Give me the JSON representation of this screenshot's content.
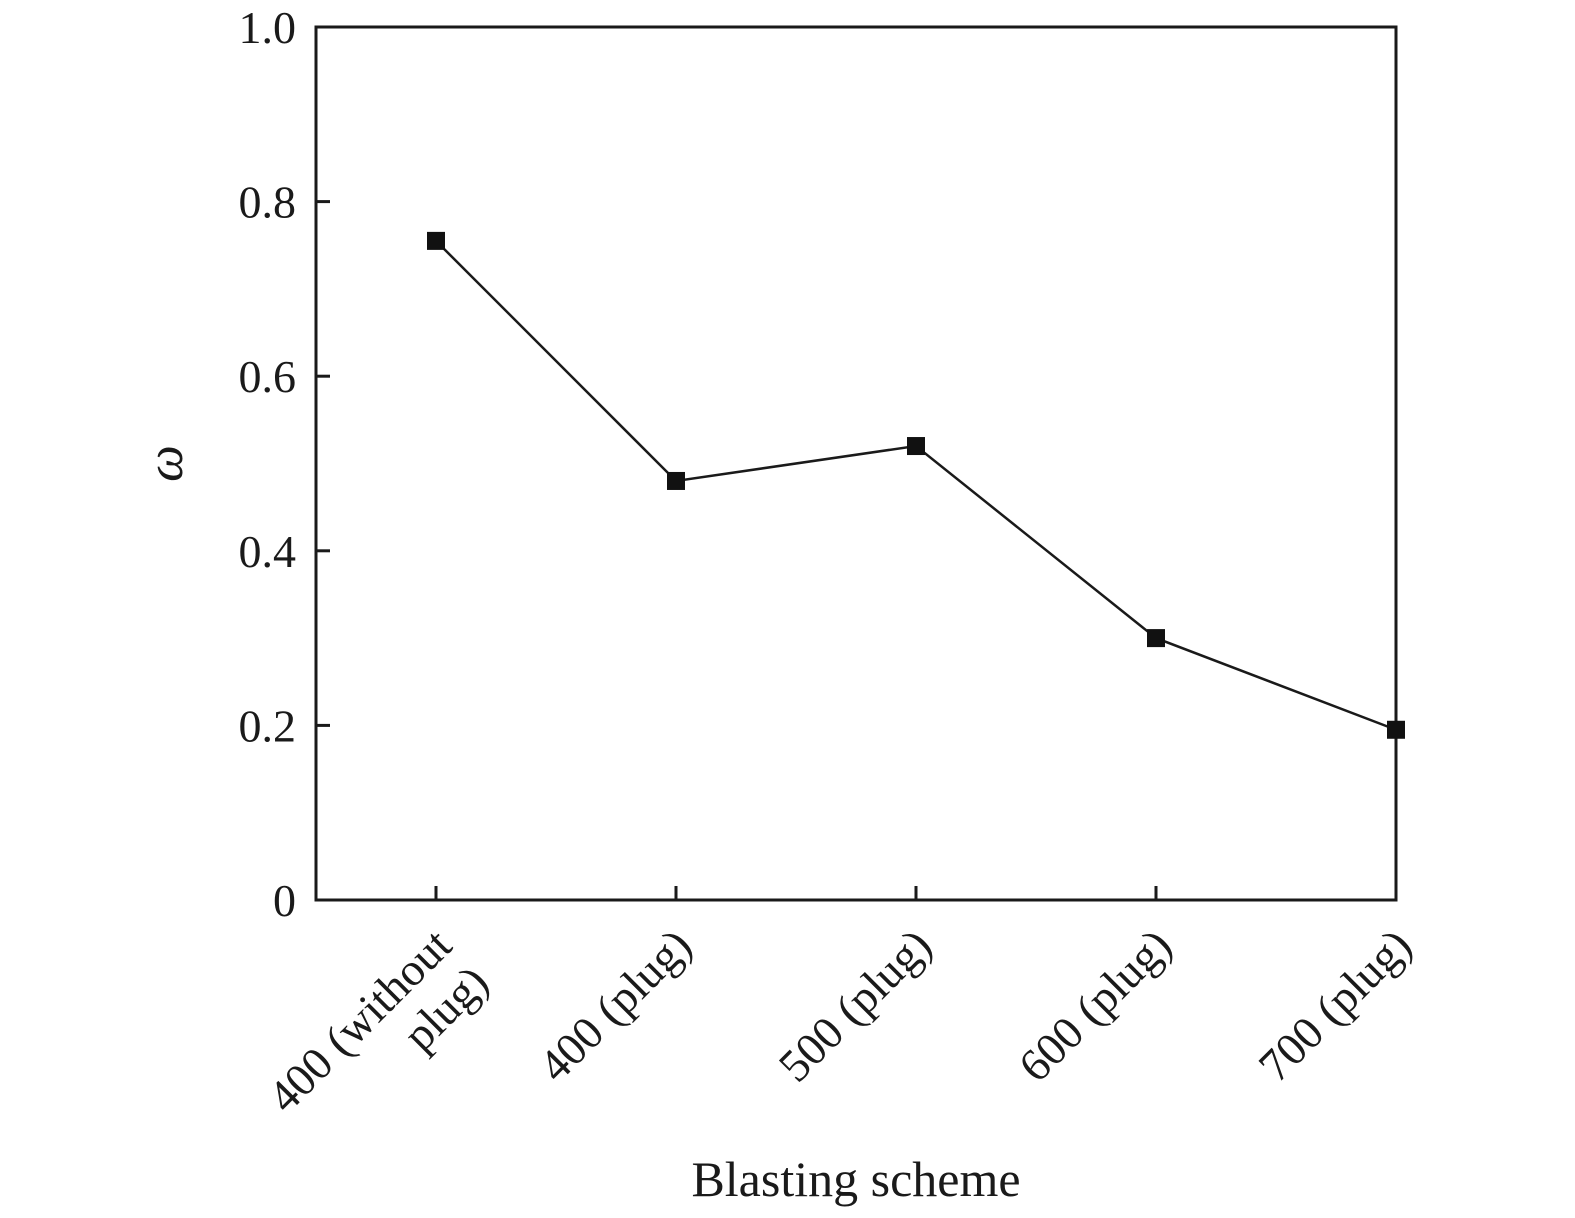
{
  "chart_data": {
    "type": "line",
    "title": "",
    "xlabel": "Blasting scheme",
    "ylabel": "ω",
    "categories": [
      [
        "400 (without",
        "plug)"
      ],
      [
        "400 (plug)"
      ],
      [
        "500 (plug)"
      ],
      [
        "600 (plug)"
      ],
      [
        "700 (plug)"
      ]
    ],
    "series": [
      {
        "values": [
          0.755,
          0.48,
          0.52,
          0.3,
          0.195
        ]
      }
    ],
    "ylim": [
      0,
      1.0
    ],
    "yticks": [
      0,
      0.2,
      0.4,
      0.6,
      0.8,
      1.0
    ],
    "ytick_labels": [
      "0",
      "0.2",
      "0.4",
      "0.6",
      "0.8",
      "1.0"
    ],
    "grid": false,
    "marker": "square",
    "colors": {
      "line": "#1a1a1a",
      "marker": "#111111",
      "axis": "#1a1a1a"
    }
  }
}
